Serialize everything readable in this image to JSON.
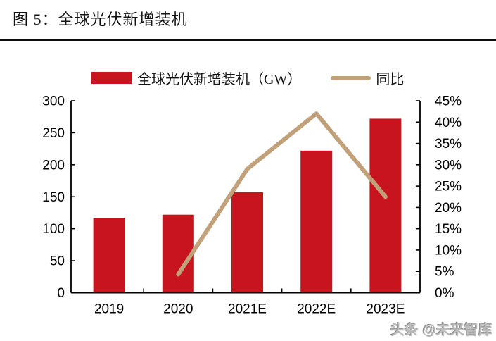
{
  "header": {
    "title": "图 5：全球光伏新增装机"
  },
  "legend": {
    "bars_label": "全球光伏新增装机（GW）",
    "line_label": "同比"
  },
  "watermark": "头条 @未来智库",
  "colors": {
    "bar": "#C8141E",
    "line": "#C1A179",
    "axis": "#000000",
    "title_rule": "#0D0D0D",
    "watermark": "#BDBDBD"
  },
  "chart_data": {
    "type": "bar",
    "subtype": "bar+line dual-axis",
    "categories": [
      "2019",
      "2020",
      "2021E",
      "2022E",
      "2023E"
    ],
    "series": [
      {
        "name": "全球光伏新增装机（GW）",
        "type": "bar",
        "axis": "left",
        "values": [
          117,
          122,
          157,
          222,
          272
        ]
      },
      {
        "name": "同比",
        "type": "line",
        "axis": "right",
        "values": [
          null,
          4.3,
          29,
          42,
          22.5
        ]
      }
    ],
    "title": "图 5：全球光伏新增装机",
    "xlabel": "",
    "ylabel_left": "GW",
    "ylabel_right": "%",
    "left_axis": {
      "min": 0,
      "max": 300,
      "step": 50,
      "tick_labels": [
        "0",
        "50",
        "100",
        "150",
        "200",
        "250",
        "300"
      ]
    },
    "right_axis": {
      "min": 0,
      "max": 45,
      "step": 5,
      "tick_labels": [
        "0%",
        "5%",
        "10%",
        "15%",
        "20%",
        "25%",
        "30%",
        "35%",
        "40%",
        "45%"
      ]
    },
    "grid": false,
    "legend_position": "top"
  }
}
